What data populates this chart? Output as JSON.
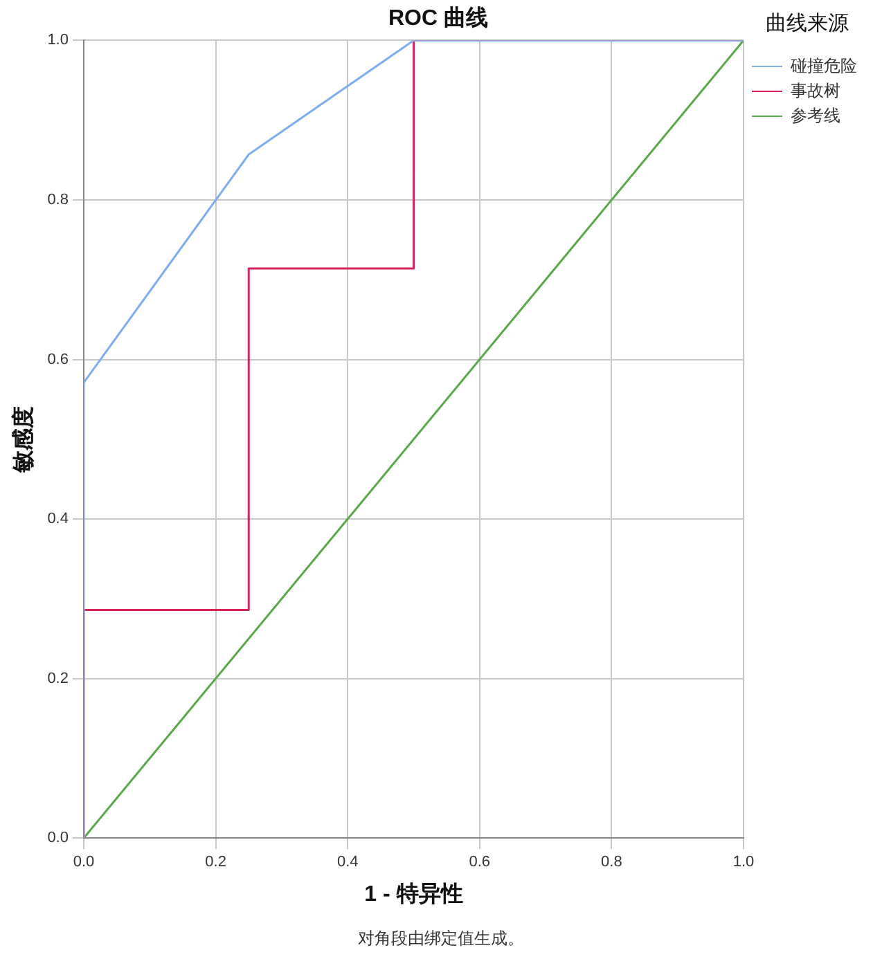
{
  "chart_data": {
    "type": "line",
    "title": "ROC 曲线",
    "xlabel": "1 - 特异性",
    "ylabel": "敏感度",
    "legend_title": "曲线来源",
    "series": [
      {
        "name": "碰撞危险",
        "color": "#7eaef0",
        "x": [
          0,
          0,
          0,
          0.25,
          0.5,
          1
        ],
        "values": [
          0,
          0.286,
          0.571,
          0.857,
          1,
          1
        ]
      },
      {
        "name": "事故树",
        "color": "#d4245a",
        "x": [
          0,
          0,
          0.25,
          0.25,
          0.5,
          0.5,
          1
        ],
        "values": [
          0,
          0.286,
          0.286,
          0.714,
          0.714,
          1,
          1
        ]
      },
      {
        "name": "参考线",
        "color": "#5aa84a",
        "x": [
          0,
          1
        ],
        "values": [
          0,
          1
        ]
      }
    ],
    "xlim": [
      0,
      1
    ],
    "ylim": [
      0,
      1
    ],
    "xticks": [
      {
        "value": 0,
        "label": "0.0"
      },
      0.2,
      0.4,
      0.6,
      0.8,
      {
        "value": 1,
        "label": "1.0"
      }
    ],
    "yticks": [
      {
        "value": 0,
        "label": "0.0"
      },
      0.2,
      0.4,
      0.6,
      0.8,
      {
        "value": 1,
        "label": "1.0"
      }
    ],
    "grid": true,
    "legend": "right",
    "marker": "none",
    "line_style": "solid",
    "annotations": [
      "对角段由绑定值生成。"
    ]
  }
}
